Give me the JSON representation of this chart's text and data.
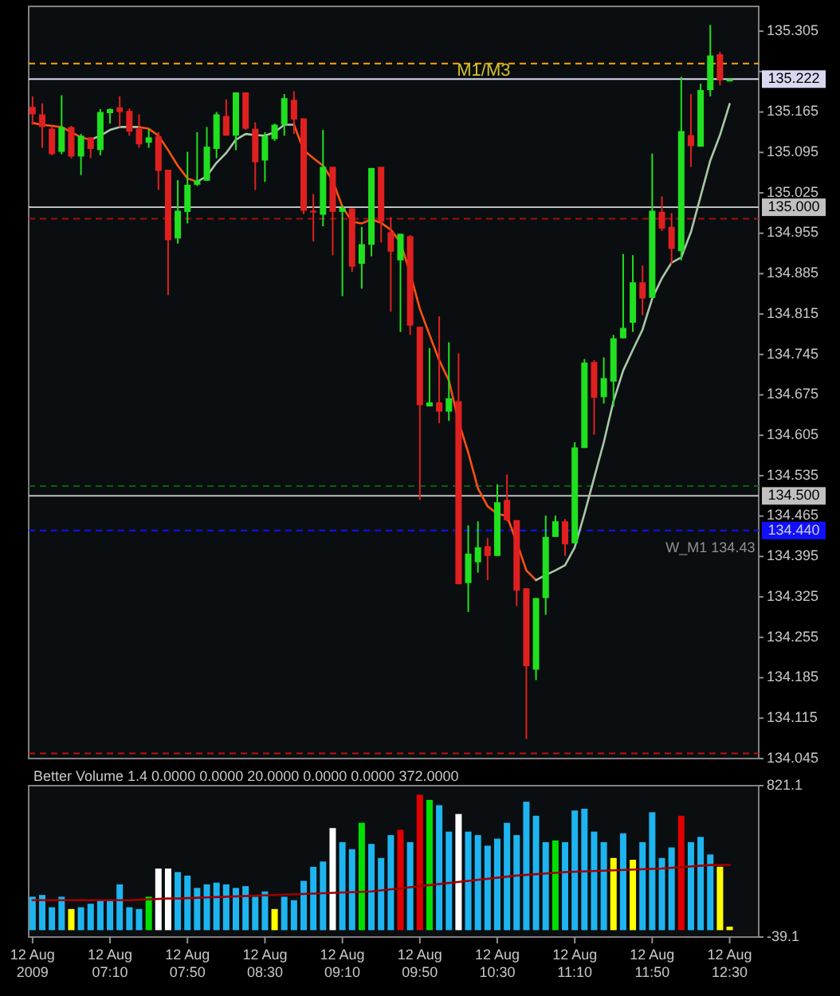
{
  "chart_data": [
    {
      "type": "candlestick",
      "tick_labels": "y",
      "xlim": [
        "2009-08-12T06:28",
        "2009-08-12T12:45"
      ],
      "ylim": [
        134.045,
        135.348
      ],
      "yticks": [
        135.305,
        {
          "value": 135.235,
          "label": null
        },
        135.165,
        135.095,
        135.025,
        134.955,
        134.885,
        134.815,
        134.745,
        134.675,
        134.605,
        134.535,
        134.465,
        134.395,
        134.325,
        134.255,
        134.185,
        134.115,
        134.045
      ],
      "x": [
        "2009-08-12T06:30",
        "2009-08-12T06:35",
        "2009-08-12T06:40",
        "2009-08-12T06:45",
        "2009-08-12T06:50",
        "2009-08-12T06:55",
        "2009-08-12T07:00",
        "2009-08-12T07:05",
        "2009-08-12T07:10",
        "2009-08-12T07:15",
        "2009-08-12T07:20",
        "2009-08-12T07:25",
        "2009-08-12T07:30",
        "2009-08-12T07:35",
        "2009-08-12T07:40",
        "2009-08-12T07:45",
        "2009-08-12T07:50",
        "2009-08-12T07:55",
        "2009-08-12T08:00",
        "2009-08-12T08:05",
        "2009-08-12T08:10",
        "2009-08-12T08:15",
        "2009-08-12T08:20",
        "2009-08-12T08:25",
        "2009-08-12T08:30",
        "2009-08-12T08:35",
        "2009-08-12T08:40",
        "2009-08-12T08:45",
        "2009-08-12T08:50",
        "2009-08-12T08:55",
        "2009-08-12T09:00",
        "2009-08-12T09:05",
        "2009-08-12T09:10",
        "2009-08-12T09:15",
        "2009-08-12T09:20",
        "2009-08-12T09:25",
        "2009-08-12T09:30",
        "2009-08-12T09:35",
        "2009-08-12T09:40",
        "2009-08-12T09:45",
        "2009-08-12T09:50",
        "2009-08-12T09:55",
        "2009-08-12T10:00",
        "2009-08-12T10:05",
        "2009-08-12T10:10",
        "2009-08-12T10:15",
        "2009-08-12T10:20",
        "2009-08-12T10:25",
        "2009-08-12T10:30",
        "2009-08-12T10:35",
        "2009-08-12T10:40",
        "2009-08-12T10:45",
        "2009-08-12T10:50",
        "2009-08-12T10:55",
        "2009-08-12T11:00",
        "2009-08-12T11:05",
        "2009-08-12T11:10",
        "2009-08-12T11:15",
        "2009-08-12T11:20",
        "2009-08-12T11:25",
        "2009-08-12T11:30",
        "2009-08-12T11:35",
        "2009-08-12T11:40",
        "2009-08-12T11:45",
        "2009-08-12T11:50",
        "2009-08-12T11:55",
        "2009-08-12T12:00",
        "2009-08-12T12:05",
        "2009-08-12T12:10",
        "2009-08-12T12:15",
        "2009-08-12T12:20",
        "2009-08-12T12:25",
        "2009-08-12T12:30"
      ],
      "ohlc": [
        [
          135.174,
          135.192,
          135.143,
          135.161
        ],
        [
          135.161,
          135.18,
          135.103,
          135.139
        ],
        [
          135.136,
          135.139,
          135.09,
          135.092
        ],
        [
          135.096,
          135.194,
          135.092,
          135.139
        ],
        [
          135.139,
          135.141,
          135.085,
          135.088
        ],
        [
          135.088,
          135.127,
          135.056,
          135.124
        ],
        [
          135.121,
          135.121,
          135.085,
          135.101
        ],
        [
          135.099,
          135.17,
          135.09,
          135.165
        ],
        [
          135.163,
          135.171,
          135.145,
          135.17
        ],
        [
          135.173,
          135.192,
          135.139,
          135.165
        ],
        [
          135.167,
          135.171,
          135.124,
          135.131
        ],
        [
          135.136,
          135.161,
          135.103,
          135.109
        ],
        [
          135.112,
          135.136,
          135.103,
          135.121
        ],
        [
          135.123,
          135.13,
          135.03,
          135.063
        ],
        [
          135.065,
          135.065,
          134.848,
          134.943
        ],
        [
          134.946,
          135.047,
          134.937,
          134.994
        ],
        [
          134.992,
          135.096,
          134.972,
          135.039
        ],
        [
          135.039,
          135.13,
          135.037,
          135.046
        ],
        [
          135.046,
          135.139,
          135.046,
          135.105
        ],
        [
          135.101,
          135.165,
          135.085,
          135.161
        ],
        [
          135.158,
          135.187,
          135.124,
          135.124
        ],
        [
          135.124,
          135.199,
          135.099,
          135.199
        ],
        [
          135.199,
          135.199,
          135.134,
          135.136
        ],
        [
          135.136,
          135.147,
          135.03,
          135.078
        ],
        [
          135.081,
          135.13,
          135.044,
          135.123
        ],
        [
          135.118,
          135.145,
          135.115,
          135.143
        ],
        [
          135.143,
          135.196,
          135.124,
          135.189
        ],
        [
          135.186,
          135.201,
          135.127,
          135.152
        ],
        [
          135.154,
          135.154,
          134.988,
          134.994
        ],
        [
          134.994,
          135.023,
          134.941,
          134.991
        ],
        [
          134.987,
          135.134,
          134.967,
          135.07
        ],
        [
          135.07,
          135.07,
          134.917,
          134.992
        ],
        [
          134.992,
          135.003,
          134.846,
          134.999
        ],
        [
          134.998,
          134.998,
          134.888,
          134.897
        ],
        [
          134.902,
          134.966,
          134.859,
          134.936
        ],
        [
          134.935,
          135.068,
          134.915,
          135.068
        ],
        [
          135.07,
          135.07,
          134.939,
          134.975
        ],
        [
          134.957,
          134.983,
          134.819,
          134.923
        ],
        [
          134.908,
          134.954,
          134.784,
          134.954
        ],
        [
          134.95,
          134.952,
          134.779,
          134.795
        ],
        [
          134.793,
          134.793,
          134.493,
          134.657
        ],
        [
          134.655,
          134.756,
          134.655,
          134.662
        ],
        [
          134.662,
          134.811,
          134.626,
          134.646
        ],
        [
          134.646,
          134.766,
          134.63,
          134.669
        ],
        [
          134.664,
          134.747,
          134.347,
          134.347
        ],
        [
          134.349,
          134.449,
          134.299,
          134.4
        ],
        [
          134.385,
          134.456,
          134.367,
          134.411
        ],
        [
          134.413,
          134.427,
          134.354,
          134.396
        ],
        [
          134.396,
          134.52,
          134.396,
          134.489
        ],
        [
          134.493,
          134.537,
          134.456,
          134.458
        ],
        [
          134.458,
          134.458,
          134.309,
          134.336
        ],
        [
          134.34,
          134.34,
          134.079,
          134.205
        ],
        [
          134.199,
          134.323,
          134.181,
          134.323
        ],
        [
          134.323,
          134.466,
          134.294,
          134.429
        ],
        [
          134.429,
          134.466,
          134.429,
          134.456
        ],
        [
          134.456,
          134.46,
          134.396,
          134.416
        ],
        [
          134.418,
          134.593,
          134.418,
          134.584
        ],
        [
          134.583,
          134.737,
          134.583,
          134.731
        ],
        [
          134.732,
          134.735,
          134.606,
          134.67
        ],
        [
          134.671,
          134.74,
          134.66,
          134.704
        ],
        [
          134.698,
          134.779,
          134.655,
          134.773
        ],
        [
          134.773,
          134.919,
          134.773,
          134.791
        ],
        [
          134.8,
          134.917,
          134.784,
          134.87
        ],
        [
          134.87,
          134.899,
          134.813,
          134.842
        ],
        [
          134.843,
          135.093,
          134.843,
          134.994
        ],
        [
          134.992,
          135.019,
          134.959,
          134.963
        ],
        [
          134.966,
          134.99,
          134.901,
          134.928
        ],
        [
          134.924,
          135.226,
          134.908,
          135.132
        ],
        [
          135.125,
          135.196,
          135.07,
          135.106
        ],
        [
          135.105,
          135.214,
          135.105,
          135.203
        ],
        [
          135.203,
          135.316,
          135.192,
          135.263
        ],
        [
          135.265,
          135.269,
          135.211,
          135.22
        ],
        [
          135.218,
          135.222,
          135.218,
          135.222
        ]
      ],
      "colors": [
        "#e02020",
        "#e02020",
        "#e02020",
        "#20e020",
        "#e02020",
        "#20e020",
        "#e02020",
        "#20e020",
        "#20e020",
        "#e02020",
        "#e02020",
        "#e02020",
        "#20e020",
        "#e02020",
        "#e02020",
        "#20e020",
        "#20e020",
        "#20e020",
        "#20e020",
        "#20e020",
        "#e02020",
        "#20e020",
        "#e02020",
        "#e02020",
        "#20e020",
        "#20e020",
        "#20e020",
        "#e02020",
        "#e02020",
        "#e02020",
        "#20e020",
        "#e02020",
        "#20e020",
        "#e02020",
        "#20e020",
        "#20e020",
        "#e02020",
        "#e02020",
        "#20e020",
        "#e02020",
        "#e02020",
        "#20e020",
        "#e02020",
        "#20e020",
        "#e02020",
        "#20e020",
        "#20e020",
        "#e02020",
        "#20e020",
        "#e02020",
        "#e02020",
        "#e02020",
        "#20e020",
        "#20e020",
        "#20e020",
        "#e02020",
        "#20e020",
        "#20e020",
        "#e02020",
        "#20e020",
        "#20e020",
        "#20e020",
        "#20e020",
        "#e02020",
        "#20e020",
        "#e02020",
        "#e02020",
        "#20e020",
        "#e02020",
        "#20e020",
        "#20e020",
        "#e02020",
        "#20e020"
      ],
      "series": [
        {
          "type": "line",
          "color": "#ff5010",
          "values": [
            135.146,
            135.143,
            135.141,
            135.139,
            135.13,
            135.121,
            135.117,
            null,
            null,
            null,
            null,
            135.139,
            135.136,
            135.124,
            135.099,
            135.072,
            135.05,
            135.044,
            null,
            null,
            null,
            null,
            null,
            null,
            null,
            null,
            null,
            135.143,
            135.099,
            135.085,
            135.072,
            135.046,
            135.001,
            134.975,
            134.972,
            134.979,
            134.973,
            134.961,
            134.939,
            134.886,
            134.824,
            134.779,
            134.735,
            134.7,
            134.629,
            134.575,
            134.513,
            134.482,
            134.469,
            134.465,
            134.42,
            134.371,
            134.354,
            null,
            null,
            null,
            null,
            null,
            null,
            null,
            null,
            null,
            null,
            null,
            null,
            null,
            null,
            null,
            null,
            null,
            null,
            null,
            null
          ]
        },
        {
          "type": "line",
          "color": "#a8c8a8",
          "values": [
            null,
            null,
            null,
            null,
            null,
            null,
            135.117,
            135.124,
            135.134,
            135.139,
            135.139,
            135.139,
            null,
            null,
            null,
            null,
            null,
            135.044,
            135.054,
            135.077,
            135.094,
            135.117,
            135.127,
            135.125,
            135.124,
            135.13,
            135.143,
            135.143,
            null,
            null,
            null,
            null,
            null,
            null,
            null,
            null,
            null,
            null,
            null,
            null,
            null,
            null,
            null,
            null,
            null,
            null,
            null,
            null,
            null,
            null,
            null,
            null,
            134.354,
            134.363,
            134.371,
            134.38,
            134.411,
            134.469,
            134.531,
            134.593,
            134.664,
            134.717,
            134.753,
            134.788,
            134.842,
            134.877,
            134.904,
            134.913,
            134.957,
            135.019,
            135.081,
            135.125,
            135.179
          ]
        }
      ],
      "ref_lines": [
        {
          "axis": "y",
          "value": 135.249,
          "color": "#ffa500",
          "line_style": "dashed"
        },
        {
          "axis": "y",
          "value": 135.222,
          "label": "135.222",
          "color": "#d8d8f0",
          "line_style": "solid"
        },
        {
          "axis": "y",
          "value": 135.0,
          "label": "135.000",
          "color": "#c0c0c0",
          "line_style": "solid"
        },
        {
          "axis": "y",
          "value": 134.98,
          "color": "#a01010",
          "line_style": "dashed"
        },
        {
          "axis": "y",
          "value": 134.517,
          "color": "#0a6010",
          "line_style": "dashed"
        },
        {
          "axis": "y",
          "value": 134.5,
          "label": "134.500",
          "color": "#c0c0c0",
          "line_style": "solid"
        },
        {
          "axis": "y",
          "value": 134.44,
          "label": "134.440",
          "color": "#1010ff",
          "line_style": "dashed"
        },
        {
          "axis": "y",
          "value": 134.054,
          "color": "#c01010",
          "line_style": "dashed"
        }
      ],
      "annotations": [
        {
          "text": "M1/M3",
          "y": 135.222
        },
        {
          "text": "W_M1 134.43",
          "y": 134.43
        }
      ]
    },
    {
      "type": "bar",
      "title": "Better Volume 1.4 0.0000 0.0000 20.0000 0.0000 0.0000 372.0000",
      "xlim": [
        "2009-08-12T06:28",
        "2009-08-12T12:45"
      ],
      "ylim": [
        -39.1,
        821.1
      ],
      "yticks": [
        821.1,
        -39.1
      ],
      "xticks": [
        {
          "value": "2009-08-12T06:30",
          "label": "12 Aug 2009"
        },
        {
          "value": "2009-08-12T07:10",
          "label": "12 Aug 07:10"
        },
        {
          "value": "2009-08-12T07:50",
          "label": "12 Aug 07:50"
        },
        {
          "value": "2009-08-12T08:30",
          "label": "12 Aug 08:30"
        },
        {
          "value": "2009-08-12T09:10",
          "label": "12 Aug 09:10"
        },
        {
          "value": "2009-08-12T09:50",
          "label": "12 Aug 09:50"
        },
        {
          "value": "2009-08-12T10:30",
          "label": "12 Aug 10:30"
        },
        {
          "value": "2009-08-12T11:10",
          "label": "12 Aug 11:10"
        },
        {
          "value": "2009-08-12T11:50",
          "label": "12 Aug 11:50"
        },
        {
          "value": "2009-08-12T12:30",
          "label": "12 Aug 12:30"
        }
      ],
      "x": [
        "2009-08-12T06:30",
        "2009-08-12T06:35",
        "2009-08-12T06:40",
        "2009-08-12T06:45",
        "2009-08-12T06:50",
        "2009-08-12T06:55",
        "2009-08-12T07:00",
        "2009-08-12T07:05",
        "2009-08-12T07:10",
        "2009-08-12T07:15",
        "2009-08-12T07:20",
        "2009-08-12T07:25",
        "2009-08-12T07:30",
        "2009-08-12T07:35",
        "2009-08-12T07:40",
        "2009-08-12T07:45",
        "2009-08-12T07:50",
        "2009-08-12T07:55",
        "2009-08-12T08:00",
        "2009-08-12T08:05",
        "2009-08-12T08:10",
        "2009-08-12T08:15",
        "2009-08-12T08:20",
        "2009-08-12T08:25",
        "2009-08-12T08:30",
        "2009-08-12T08:35",
        "2009-08-12T08:40",
        "2009-08-12T08:45",
        "2009-08-12T08:50",
        "2009-08-12T08:55",
        "2009-08-12T09:00",
        "2009-08-12T09:05",
        "2009-08-12T09:10",
        "2009-08-12T09:15",
        "2009-08-12T09:20",
        "2009-08-12T09:25",
        "2009-08-12T09:30",
        "2009-08-12T09:35",
        "2009-08-12T09:40",
        "2009-08-12T09:45",
        "2009-08-12T09:50",
        "2009-08-12T09:55",
        "2009-08-12T10:00",
        "2009-08-12T10:05",
        "2009-08-12T10:10",
        "2009-08-12T10:15",
        "2009-08-12T10:20",
        "2009-08-12T10:25",
        "2009-08-12T10:30",
        "2009-08-12T10:35",
        "2009-08-12T10:40",
        "2009-08-12T10:45",
        "2009-08-12T10:50",
        "2009-08-12T10:55",
        "2009-08-12T11:00",
        "2009-08-12T11:05",
        "2009-08-12T11:10",
        "2009-08-12T11:15",
        "2009-08-12T11:20",
        "2009-08-12T11:25",
        "2009-08-12T11:30",
        "2009-08-12T11:35",
        "2009-08-12T11:40",
        "2009-08-12T11:45",
        "2009-08-12T11:50",
        "2009-08-12T11:55",
        "2009-08-12T12:00",
        "2009-08-12T12:05",
        "2009-08-12T12:10",
        "2009-08-12T12:15",
        "2009-08-12T12:20",
        "2009-08-12T12:25",
        "2009-08-12T12:30"
      ],
      "series": [
        {
          "type": "bar",
          "values": [
            190,
            200,
            130,
            190,
            120,
            130,
            150,
            170,
            170,
            260,
            130,
            120,
            190,
            350,
            350,
            330,
            310,
            240,
            260,
            270,
            260,
            240,
            250,
            190,
            220,
            120,
            190,
            170,
            280,
            360,
            390,
            580,
            500,
            460,
            610,
            490,
            410,
            540,
            570,
            500,
            770,
            740,
            710,
            560,
            660,
            560,
            540,
            480,
            520,
            610,
            540,
            730,
            650,
            500,
            510,
            500,
            680,
            690,
            560,
            500,
            410,
            550,
            400,
            500,
            670,
            410,
            470,
            650,
            500,
            530,
            430,
            360,
            20
          ],
          "colors": [
            "#1eb4f0",
            "#1eb4f0",
            "#1eb4f0",
            "#1eb4f0",
            "#ffff00",
            "#1eb4f0",
            "#1eb4f0",
            "#1eb4f0",
            "#1eb4f0",
            "#1eb4f0",
            "#1eb4f0",
            "#1eb4f0",
            "#00e000",
            "#ffffff",
            "#ffffff",
            "#1eb4f0",
            "#1eb4f0",
            "#1eb4f0",
            "#1eb4f0",
            "#1eb4f0",
            "#1eb4f0",
            "#1eb4f0",
            "#1eb4f0",
            "#1eb4f0",
            "#1eb4f0",
            "#ffff00",
            "#1eb4f0",
            "#1eb4f0",
            "#1eb4f0",
            "#1eb4f0",
            "#1eb4f0",
            "#ffffff",
            "#1eb4f0",
            "#1eb4f0",
            "#00e000",
            "#1eb4f0",
            "#1eb4f0",
            "#1eb4f0",
            "#e00000",
            "#1eb4f0",
            "#e00000",
            "#00e000",
            "#1eb4f0",
            "#1eb4f0",
            "#ffffff",
            "#1eb4f0",
            "#1eb4f0",
            "#1eb4f0",
            "#1eb4f0",
            "#1eb4f0",
            "#1eb4f0",
            "#1eb4f0",
            "#1eb4f0",
            "#1eb4f0",
            "#00e000",
            "#1eb4f0",
            "#1eb4f0",
            "#1eb4f0",
            "#1eb4f0",
            "#1eb4f0",
            "#ffff00",
            "#1eb4f0",
            "#ffff00",
            "#1eb4f0",
            "#1eb4f0",
            "#1eb4f0",
            "#1eb4f0",
            "#e00000",
            "#1eb4f0",
            "#1eb4f0",
            "#1eb4f0",
            "#ffff00",
            "#ffff00"
          ]
        },
        {
          "type": "line",
          "color": "#a00000",
          "x": [
            "2009-08-12T06:30",
            "2009-08-12T06:55",
            "2009-08-12T07:20",
            "2009-08-12T07:40",
            "2009-08-12T07:45",
            "2009-08-12T08:10",
            "2009-08-12T08:35",
            "2009-08-12T09:00",
            "2009-08-12T09:25",
            "2009-08-12T09:50",
            "2009-08-12T10:15",
            "2009-08-12T10:40",
            "2009-08-12T11:05",
            "2009-08-12T11:30",
            "2009-08-12T11:55",
            "2009-08-12T12:20",
            "2009-08-12T12:30"
          ],
          "values": [
            170,
            170,
            170,
            180,
            180,
            190,
            200,
            210,
            220,
            250,
            280,
            310,
            330,
            340,
            350,
            370,
            370
          ]
        }
      ]
    }
  ]
}
